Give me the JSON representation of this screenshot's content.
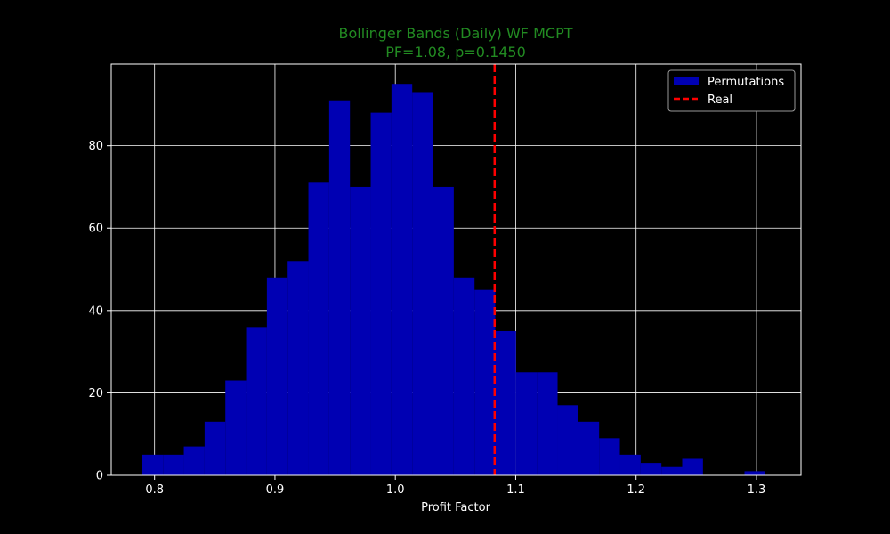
{
  "colors": {
    "background": "#000000",
    "title": "#228b22",
    "bars": "#0000b3",
    "real_line": "#ff0000",
    "grid": "#ffffff",
    "text": "#ffffff"
  },
  "chart_data": {
    "type": "bar",
    "title": "Bollinger Bands (Daily) WF MCPT",
    "subtitle": "PF=1.08, p=0.1450",
    "xlabel": "Profit Factor",
    "ylabel": "",
    "xlim": [
      0.764,
      1.337
    ],
    "ylim": [
      0,
      99.8
    ],
    "xticks": [
      "0.8",
      "0.9",
      "1.0",
      "1.1",
      "1.2",
      "1.3"
    ],
    "xtick_values": [
      0.8,
      0.9,
      1.0,
      1.1,
      1.2,
      1.3
    ],
    "yticks": [
      "0",
      "20",
      "40",
      "60",
      "80"
    ],
    "ytick_values": [
      0,
      20,
      40,
      60,
      80
    ],
    "grid": true,
    "legend_position": "top-right",
    "histogram": {
      "name": "Permutations",
      "bin_start": 0.7898,
      "bin_width": 0.01725,
      "counts": [
        5,
        5,
        7,
        13,
        23,
        36,
        48,
        52,
        71,
        91,
        70,
        88,
        95,
        93,
        70,
        48,
        45,
        35,
        25,
        25,
        17,
        13,
        9,
        5,
        3,
        2,
        4,
        0,
        0,
        1
      ]
    },
    "vline": {
      "name": "Real",
      "x": 1.0825,
      "style": "dashed"
    }
  }
}
